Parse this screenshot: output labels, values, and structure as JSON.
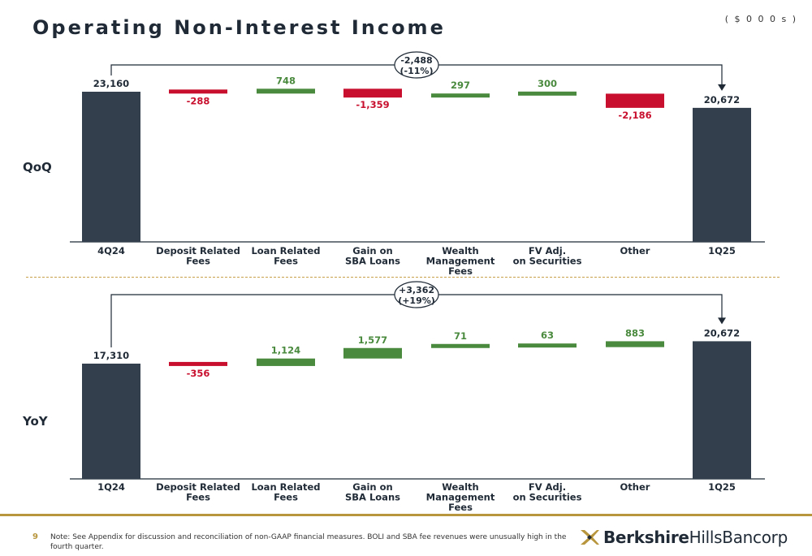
{
  "header": {
    "title": "Operating Non-Interest Income",
    "units": "( $ 0 0 0 s )"
  },
  "colors": {
    "total": "#333f4c",
    "increase": "#4a8a3e",
    "decrease": "#c8102e",
    "accent": "#b8963e"
  },
  "chart_data": [
    {
      "type": "waterfall",
      "row_label": "QoQ",
      "categories": [
        "4Q24",
        "Deposit Related Fees",
        "Loan Related Fees",
        "Gain on SBA Loans",
        "Wealth Management Fees",
        "FV Adj. on Securities",
        "Other",
        "1Q25"
      ],
      "values": [
        23160,
        -288,
        748,
        -1359,
        297,
        300,
        -2186,
        20672
      ],
      "labels": [
        "23,160",
        "-288",
        "748",
        "-1,359",
        "297",
        "300",
        "-2,186",
        "20,672"
      ],
      "kinds": [
        "total",
        "delta",
        "delta",
        "delta",
        "delta",
        "delta",
        "delta",
        "total"
      ],
      "change_line1": "-2,488",
      "change_line2": "(-11%)"
    },
    {
      "type": "waterfall",
      "row_label": "YoY",
      "categories": [
        "1Q24",
        "Deposit Related Fees",
        "Loan Related Fees",
        "Gain on SBA Loans",
        "Wealth Management Fees",
        "FV Adj. on Securities",
        "Other",
        "1Q25"
      ],
      "values": [
        17310,
        -356,
        1124,
        1577,
        71,
        63,
        883,
        20672
      ],
      "labels": [
        "17,310",
        "-356",
        "1,124",
        "1,577",
        "71",
        "63",
        "883",
        "20,672"
      ],
      "kinds": [
        "total",
        "delta",
        "delta",
        "delta",
        "delta",
        "delta",
        "delta",
        "total"
      ],
      "change_line1": "+3,362",
      "change_line2": "(+19%)"
    }
  ],
  "footer": {
    "page_number": "9",
    "note": "Note: See Appendix for discussion and reconciliation of non-GAAP financial measures. BOLI and SBA fee revenues were unusually high in the fourth quarter.",
    "logo_bold": "Berkshire",
    "logo_regular": "HillsBancorp"
  }
}
